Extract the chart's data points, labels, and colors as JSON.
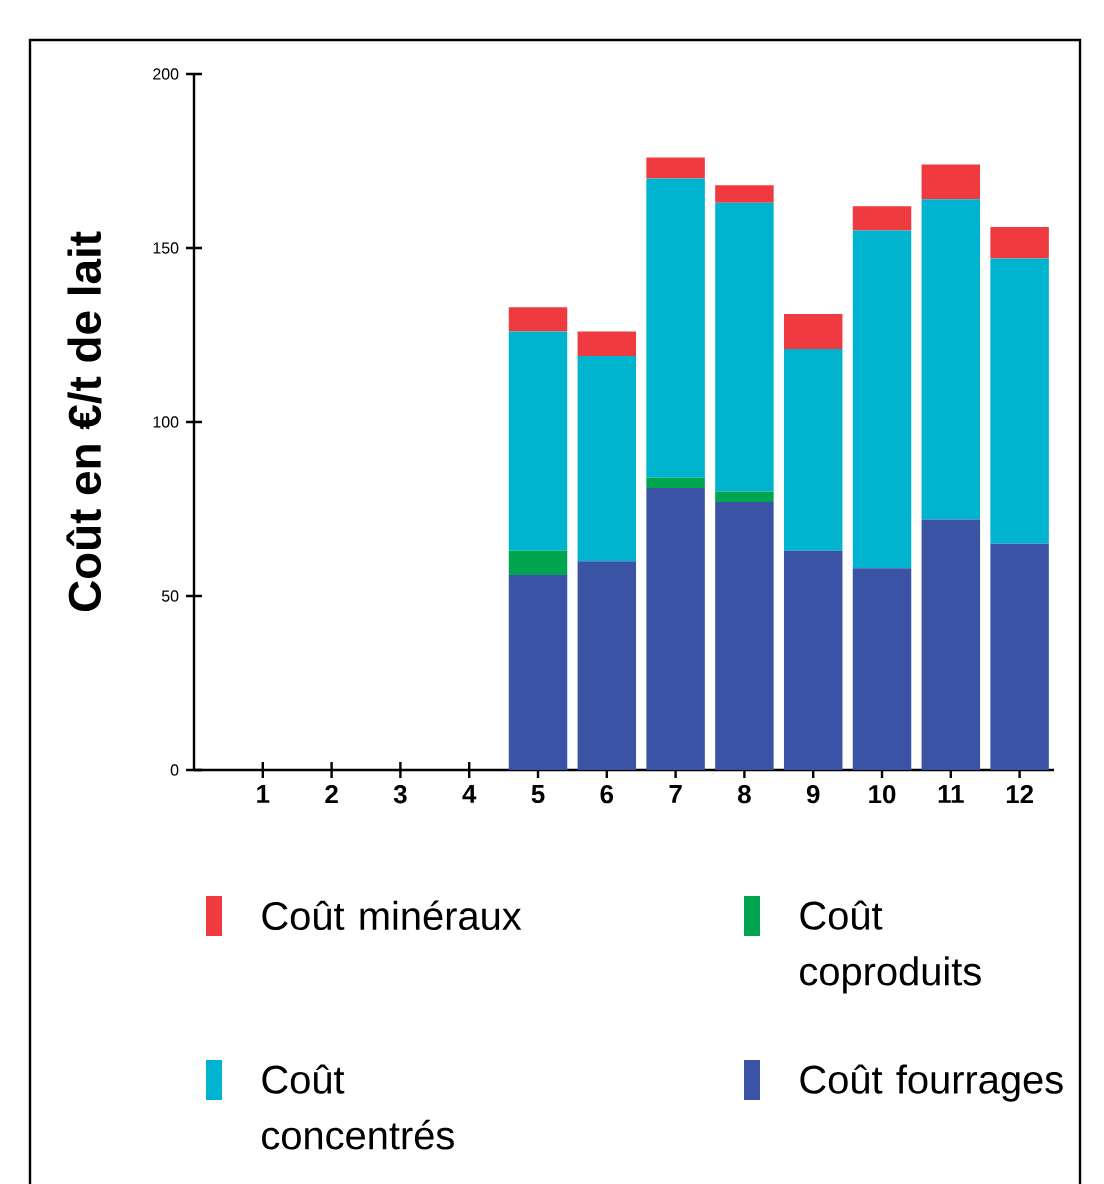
{
  "chart_data": {
    "type": "bar",
    "stacked": true,
    "ylabel": "Coût en €/t de lait",
    "categories": [
      "1",
      "2",
      "3",
      "4",
      "5",
      "6",
      "7",
      "8",
      "9",
      "10",
      "11",
      "12"
    ],
    "series": [
      {
        "name": "Coût fourrages",
        "color": "#3a53a4",
        "values": [
          null,
          null,
          null,
          null,
          56,
          60,
          81,
          77,
          63,
          58,
          72,
          65
        ]
      },
      {
        "name": "Coût coproduits",
        "color": "#00a550",
        "values": [
          null,
          null,
          null,
          null,
          7,
          null,
          3,
          3,
          null,
          null,
          null,
          null
        ]
      },
      {
        "name": "Coût concentrés",
        "color": "#00b4cf",
        "values": [
          null,
          null,
          null,
          null,
          63,
          59,
          86,
          83,
          58,
          97,
          92,
          82
        ]
      },
      {
        "name": "Coût minéraux",
        "color": "#ef3b3f",
        "values": [
          null,
          null,
          null,
          null,
          7,
          7,
          6,
          5,
          10,
          7,
          10,
          9
        ]
      }
    ],
    "ylim": [
      0,
      200
    ],
    "yticks": [
      0,
      50,
      100,
      150,
      200
    ],
    "legend": "bottom"
  }
}
